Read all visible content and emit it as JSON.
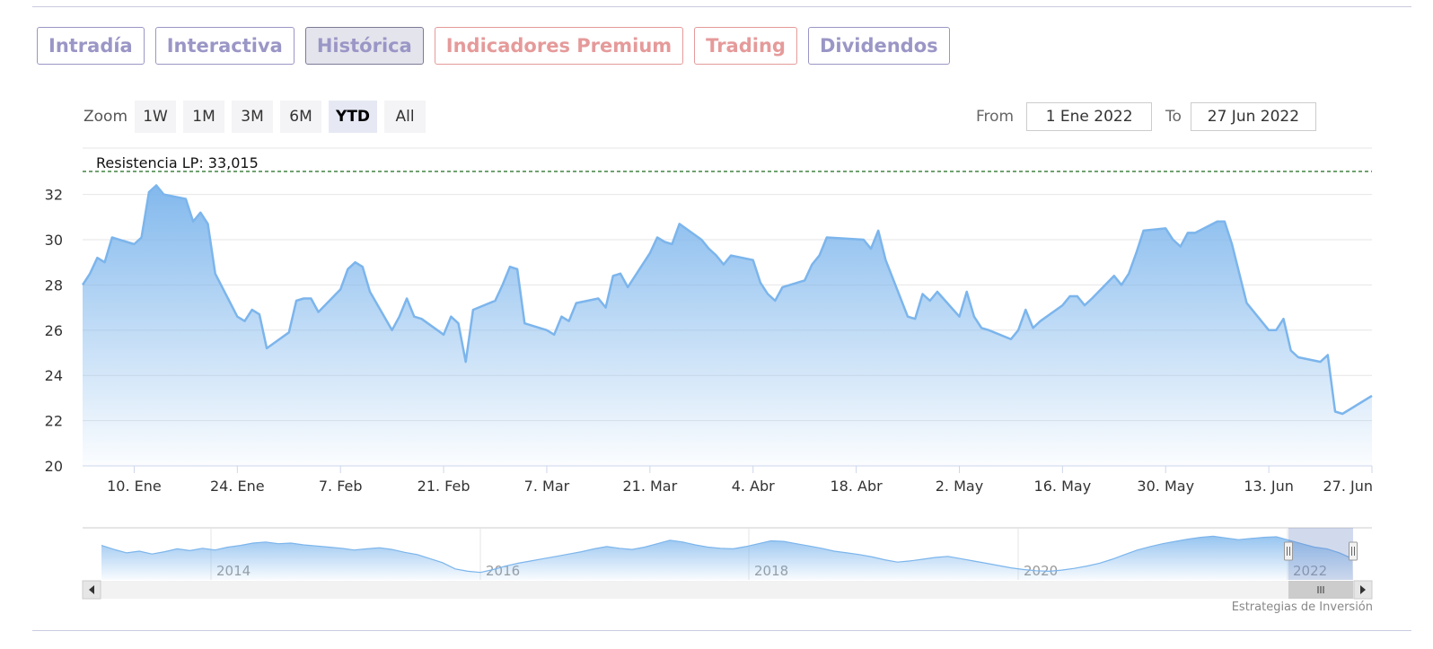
{
  "tabs": [
    {
      "label": "Intradía",
      "kind": "normal",
      "active": false
    },
    {
      "label": "Interactiva",
      "kind": "normal",
      "active": false
    },
    {
      "label": "Histórica",
      "kind": "normal",
      "active": true
    },
    {
      "label": "Indicadores Premium",
      "kind": "premium",
      "active": false
    },
    {
      "label": "Trading",
      "kind": "premium",
      "active": false
    },
    {
      "label": "Dividendos",
      "kind": "normal",
      "active": false
    }
  ],
  "zoom": {
    "label": "Zoom",
    "buttons": [
      "1W",
      "1M",
      "3M",
      "6M",
      "YTD",
      "All"
    ],
    "selected": "YTD"
  },
  "range": {
    "from_label": "From",
    "from_value": "1 Ene 2022",
    "to_label": "To",
    "to_value": "27 Jun 2022"
  },
  "credit": "Estrategias de Inversión",
  "colors": {
    "line": "#7cb5ec",
    "fill_top": "#7cb5ec",
    "resistance": "#1a6b1a",
    "tab_purple": "#9a96c6",
    "tab_pink": "#e59a9a"
  },
  "chart_data": {
    "type": "area",
    "title": "",
    "xlabel": "",
    "ylabel": "",
    "ylim": [
      20,
      33.5
    ],
    "yticks": [
      20,
      22,
      24,
      26,
      28,
      30,
      32
    ],
    "xrange": [
      "2022-01-03",
      "2022-06-27"
    ],
    "xticks": [
      {
        "label": "10. Ene",
        "date": "2022-01-10"
      },
      {
        "label": "24. Ene",
        "date": "2022-01-24"
      },
      {
        "label": "7. Feb",
        "date": "2022-02-07"
      },
      {
        "label": "21. Feb",
        "date": "2022-02-21"
      },
      {
        "label": "7. Mar",
        "date": "2022-03-07"
      },
      {
        "label": "21. Mar",
        "date": "2022-03-21"
      },
      {
        "label": "4. Abr",
        "date": "2022-04-04"
      },
      {
        "label": "18. Abr",
        "date": "2022-04-18"
      },
      {
        "label": "2. May",
        "date": "2022-05-02"
      },
      {
        "label": "16. May",
        "date": "2022-05-16"
      },
      {
        "label": "30. May",
        "date": "2022-05-30"
      },
      {
        "label": "13. Jun",
        "date": "2022-06-13"
      },
      {
        "label": "27. Jun",
        "date": "2022-06-27"
      }
    ],
    "grid": true,
    "legend": "none",
    "annotation": {
      "label": "Resistencia LP: 33,015",
      "value": 33.015
    },
    "series": [
      {
        "x": [
          "2022-01-03",
          "2022-01-04",
          "2022-01-05",
          "2022-01-06",
          "2022-01-07",
          "2022-01-10",
          "2022-01-11",
          "2022-01-12",
          "2022-01-13",
          "2022-01-14",
          "2022-01-17",
          "2022-01-18",
          "2022-01-19",
          "2022-01-20",
          "2022-01-21",
          "2022-01-24",
          "2022-01-25",
          "2022-01-26",
          "2022-01-27",
          "2022-01-28",
          "2022-01-31",
          "2022-02-01",
          "2022-02-02",
          "2022-02-03",
          "2022-02-04",
          "2022-02-07",
          "2022-02-08",
          "2022-02-09",
          "2022-02-10",
          "2022-02-11",
          "2022-02-14",
          "2022-02-15",
          "2022-02-16",
          "2022-02-17",
          "2022-02-18",
          "2022-02-21",
          "2022-02-22",
          "2022-02-23",
          "2022-02-24",
          "2022-02-25",
          "2022-02-28",
          "2022-03-01",
          "2022-03-02",
          "2022-03-03",
          "2022-03-04",
          "2022-03-07",
          "2022-03-08",
          "2022-03-09",
          "2022-03-10",
          "2022-03-11",
          "2022-03-14",
          "2022-03-15",
          "2022-03-16",
          "2022-03-17",
          "2022-03-18",
          "2022-03-21",
          "2022-03-22",
          "2022-03-23",
          "2022-03-24",
          "2022-03-25",
          "2022-03-28",
          "2022-03-29",
          "2022-03-30",
          "2022-03-31",
          "2022-04-01",
          "2022-04-04",
          "2022-04-05",
          "2022-04-06",
          "2022-04-07",
          "2022-04-08",
          "2022-04-11",
          "2022-04-12",
          "2022-04-13",
          "2022-04-14",
          "2022-04-19",
          "2022-04-20",
          "2022-04-21",
          "2022-04-22",
          "2022-04-25",
          "2022-04-26",
          "2022-04-27",
          "2022-04-28",
          "2022-04-29",
          "2022-05-02",
          "2022-05-03",
          "2022-05-04",
          "2022-05-05",
          "2022-05-06",
          "2022-05-09",
          "2022-05-10",
          "2022-05-11",
          "2022-05-12",
          "2022-05-13",
          "2022-05-16",
          "2022-05-17",
          "2022-05-18",
          "2022-05-19",
          "2022-05-20",
          "2022-05-23",
          "2022-05-24",
          "2022-05-25",
          "2022-05-26",
          "2022-05-27",
          "2022-05-30",
          "2022-05-31",
          "2022-06-01",
          "2022-06-02",
          "2022-06-03",
          "2022-06-06",
          "2022-06-07",
          "2022-06-08",
          "2022-06-09",
          "2022-06-10",
          "2022-06-13",
          "2022-06-14",
          "2022-06-15",
          "2022-06-16",
          "2022-06-17",
          "2022-06-20",
          "2022-06-21",
          "2022-06-22",
          "2022-06-23",
          "2022-06-24",
          "2022-06-27"
        ],
        "values": [
          28.0,
          28.5,
          29.2,
          29.0,
          30.1,
          29.8,
          30.1,
          32.1,
          32.4,
          32.0,
          31.8,
          30.8,
          31.2,
          30.7,
          28.5,
          26.6,
          26.4,
          26.9,
          26.7,
          25.2,
          25.9,
          27.3,
          27.4,
          27.4,
          26.8,
          27.8,
          28.7,
          29.0,
          28.8,
          27.7,
          26.0,
          26.6,
          27.4,
          26.6,
          26.5,
          25.8,
          26.6,
          26.3,
          24.6,
          26.9,
          27.3,
          28.0,
          28.8,
          28.7,
          26.3,
          26.0,
          25.8,
          26.6,
          26.4,
          27.2,
          27.4,
          27.0,
          28.4,
          28.5,
          27.9,
          29.4,
          30.1,
          29.9,
          29.8,
          30.7,
          30.0,
          29.6,
          29.3,
          28.9,
          29.3,
          29.1,
          28.1,
          27.6,
          27.3,
          27.9,
          28.2,
          28.9,
          29.3,
          30.1,
          30.0,
          29.6,
          30.4,
          29.1,
          26.6,
          26.5,
          27.6,
          27.3,
          27.7,
          26.6,
          27.7,
          26.6,
          26.1,
          26.0,
          25.6,
          26.0,
          26.9,
          26.1,
          26.4,
          27.1,
          27.5,
          27.5,
          27.1,
          27.4,
          28.4,
          28.0,
          28.5,
          29.4,
          30.4,
          30.5,
          30.0,
          29.7,
          30.3,
          30.3,
          30.8,
          30.8,
          29.8,
          28.5,
          27.2,
          26.0,
          26.0,
          26.5,
          25.1,
          24.8,
          24.6,
          24.9,
          22.4,
          22.3,
          22.5,
          23.1
        ]
      }
    ]
  },
  "navigator": {
    "year_labels": [
      "2014",
      "2016",
      "2018",
      "2020",
      "2022"
    ],
    "values": [
      26.5,
      25.8,
      25.2,
      25.5,
      25.0,
      25.4,
      25.9,
      25.6,
      26.0,
      25.7,
      26.2,
      26.5,
      26.9,
      27.1,
      26.8,
      26.9,
      26.6,
      26.4,
      26.2,
      26.0,
      25.7,
      25.9,
      26.1,
      25.8,
      25.3,
      24.9,
      24.2,
      23.5,
      22.4,
      22.0,
      21.8,
      22.3,
      22.9,
      23.4,
      23.8,
      24.2,
      24.6,
      25.0,
      25.4,
      25.9,
      26.3,
      26.0,
      25.8,
      26.2,
      26.8,
      27.4,
      27.1,
      26.6,
      26.2,
      26.0,
      25.9,
      26.3,
      26.8,
      27.3,
      27.2,
      26.8,
      26.4,
      26.0,
      25.5,
      25.2,
      24.9,
      24.5,
      24.0,
      23.6,
      23.8,
      24.1,
      24.4,
      24.6,
      24.2,
      23.8,
      23.4,
      23.0,
      22.6,
      22.3,
      22.1,
      22.0,
      22.2,
      22.5,
      22.9,
      23.4,
      24.1,
      24.9,
      25.7,
      26.3,
      26.8,
      27.2,
      27.6,
      27.9,
      28.1,
      27.8,
      27.5,
      27.7,
      27.9,
      28.0,
      27.4,
      26.8,
      26.2,
      25.9,
      25.2,
      24.2
    ]
  }
}
